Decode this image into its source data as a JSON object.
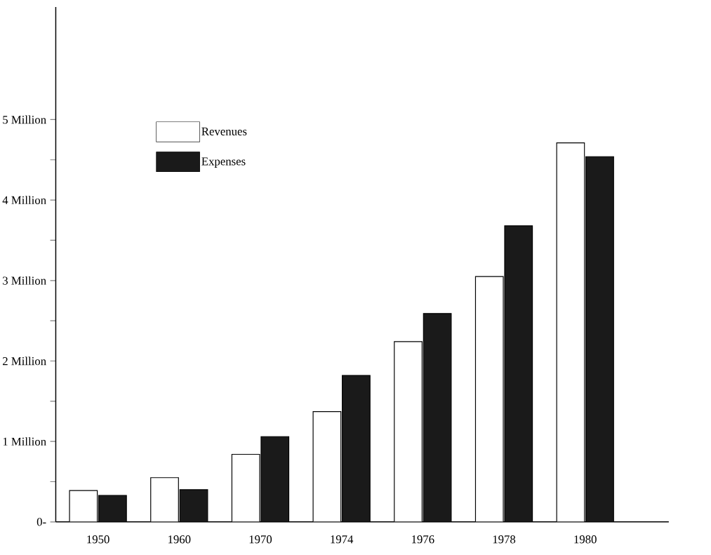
{
  "chart_data": {
    "type": "bar",
    "categories": [
      "1950",
      "1960",
      "1970",
      "1974",
      "1976",
      "1978",
      "1980"
    ],
    "series": [
      {
        "name": "Revenues",
        "color": "#ffffff",
        "values": [
          0.39,
          0.55,
          0.84,
          1.37,
          2.24,
          3.05,
          4.71
        ]
      },
      {
        "name": "Expenses",
        "color": "#1a1a1a",
        "values": [
          0.33,
          0.4,
          1.06,
          1.82,
          2.59,
          3.68,
          4.54
        ]
      }
    ],
    "ylim": [
      0,
      6.4
    ],
    "yticks": [
      {
        "value": 0,
        "label": "0-"
      },
      {
        "value": 0.5,
        "label": null
      },
      {
        "value": 1,
        "label": "1 Million"
      },
      {
        "value": 1.5,
        "label": null
      },
      {
        "value": 2,
        "label": "2 Million"
      },
      {
        "value": 2.5,
        "label": null
      },
      {
        "value": 3,
        "label": "3 Million"
      },
      {
        "value": 3.5,
        "label": null
      },
      {
        "value": 4,
        "label": "4 Million"
      },
      {
        "value": 4.5,
        "label": null
      },
      {
        "value": 5,
        "label": "5 Million"
      }
    ],
    "legend": "top left",
    "grid": false
  }
}
